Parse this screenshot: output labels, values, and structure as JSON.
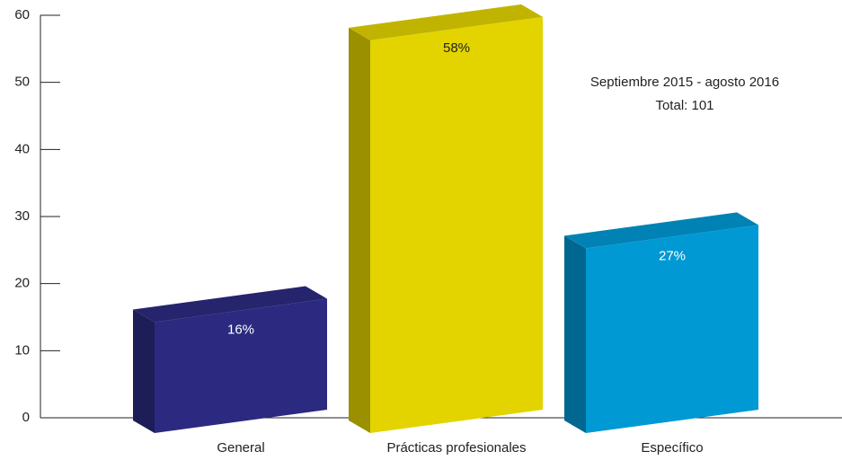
{
  "chart_data": {
    "type": "bar3d",
    "categories": [
      "General",
      "Prácticas profesionales",
      "Específico"
    ],
    "values": [
      16,
      58,
      27
    ],
    "value_labels": [
      "16%",
      "58%",
      "27%"
    ],
    "colors": [
      "#2b2a80",
      "#e3d400",
      "#0099d4"
    ],
    "annotations": [
      "Septiembre 2015 - agosto 2016",
      "Total: 101"
    ],
    "ylim": [
      0,
      60
    ],
    "yticks": [
      0,
      10,
      20,
      30,
      40,
      50,
      60
    ]
  }
}
